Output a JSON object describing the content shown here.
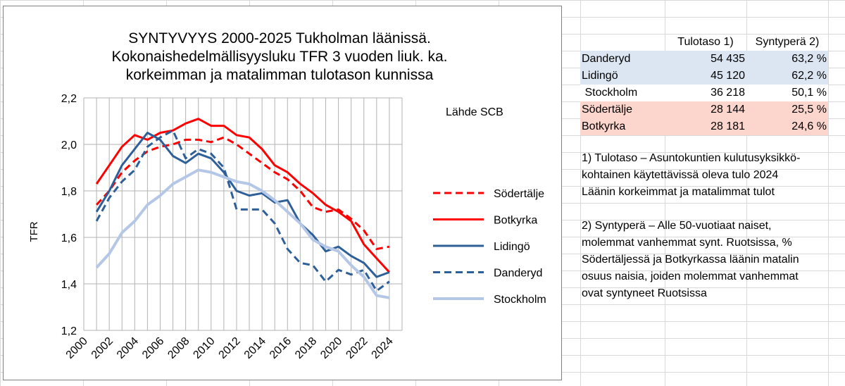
{
  "chart_data": {
    "type": "line",
    "title_lines": [
      "SYNTYVYYS 2000-2025 Tukholman läänissä.",
      "Kokonaishedelmällisyysluku TFR 3 vuoden liuk. ka.",
      "korkeimman ja matalimman tulotason kunnissa"
    ],
    "ylabel": "TFR",
    "xlabel": "",
    "source_note": "Lähde SCB",
    "ylim": [
      1.2,
      2.2
    ],
    "xlim": [
      2000,
      2025
    ],
    "y_ticks": [
      "1,2",
      "1,4",
      "1,6",
      "1,8",
      "2,0",
      "2,2"
    ],
    "y_tick_values": [
      1.2,
      1.4,
      1.6,
      1.8,
      2.0,
      2.2
    ],
    "x_ticks": [
      "2000",
      "2002",
      "2004",
      "2006",
      "2008",
      "2010",
      "2012",
      "2014",
      "2016",
      "2018",
      "2020",
      "2022",
      "2024"
    ],
    "x_tick_values": [
      2000,
      2002,
      2004,
      2006,
      2008,
      2010,
      2012,
      2014,
      2016,
      2018,
      2020,
      2022,
      2024
    ],
    "grid": "horizontal",
    "legend_position": "right",
    "x": [
      2001,
      2002,
      2003,
      2004,
      2005,
      2006,
      2007,
      2008,
      2009,
      2010,
      2011,
      2012,
      2013,
      2014,
      2015,
      2016,
      2017,
      2018,
      2019,
      2020,
      2021,
      2022,
      2023,
      2024
    ],
    "series": [
      {
        "name": "Södertälje",
        "color": "#ff0000",
        "style": "dashed",
        "width": 3,
        "values": [
          1.74,
          1.8,
          1.88,
          1.93,
          1.97,
          1.99,
          2.0,
          2.02,
          2.02,
          2.01,
          2.03,
          2.0,
          1.96,
          1.92,
          1.88,
          1.85,
          1.8,
          1.73,
          1.71,
          1.72,
          1.68,
          1.63,
          1.55,
          1.56
        ]
      },
      {
        "name": "Botkyrka",
        "color": "#ff0000",
        "style": "solid",
        "width": 3,
        "values": [
          1.83,
          1.91,
          1.99,
          2.04,
          2.02,
          2.05,
          2.06,
          2.09,
          2.11,
          2.08,
          2.08,
          2.04,
          2.03,
          1.98,
          1.91,
          1.88,
          1.83,
          1.79,
          1.74,
          1.71,
          1.67,
          1.57,
          1.51,
          1.45
        ]
      },
      {
        "name": "Lidingö",
        "color": "#2e5f99",
        "style": "solid",
        "width": 3,
        "values": [
          1.71,
          1.8,
          1.91,
          1.98,
          2.05,
          2.02,
          1.95,
          1.92,
          1.96,
          1.94,
          1.88,
          1.8,
          1.78,
          1.79,
          1.75,
          1.76,
          1.66,
          1.61,
          1.54,
          1.56,
          1.52,
          1.49,
          1.43,
          1.45
        ]
      },
      {
        "name": "Danderyd",
        "color": "#2e5f99",
        "style": "dashed",
        "width": 3,
        "values": [
          1.67,
          1.77,
          1.84,
          1.89,
          1.99,
          2.03,
          2.06,
          1.94,
          1.98,
          1.96,
          1.9,
          1.72,
          1.72,
          1.72,
          1.66,
          1.55,
          1.49,
          1.48,
          1.41,
          1.46,
          1.44,
          1.46,
          1.37,
          1.41
        ]
      },
      {
        "name": "Stockholm",
        "color": "#b4c7e7",
        "style": "solid",
        "width": 4,
        "values": [
          1.47,
          1.53,
          1.62,
          1.67,
          1.74,
          1.78,
          1.83,
          1.86,
          1.89,
          1.88,
          1.86,
          1.84,
          1.83,
          1.8,
          1.76,
          1.71,
          1.66,
          1.59,
          1.56,
          1.54,
          1.48,
          1.43,
          1.35,
          1.34
        ]
      }
    ]
  },
  "table": {
    "headers": [
      "Tulotaso 1)",
      "Syntyperä 2)"
    ],
    "rows": [
      {
        "name": "Danderyd",
        "tulotaso": "54 435",
        "syntypera": "63,2 %",
        "band": "#dce6f2"
      },
      {
        "name": "Lidingö",
        "tulotaso": "45 120",
        "syntypera": "62,2 %",
        "band": "#dce6f2"
      },
      {
        "name": " Stockholm",
        "tulotaso": "36 218",
        "syntypera": "50,1 %",
        "band": "#ffffff"
      },
      {
        "name": "Södertälje",
        "tulotaso": "28 144",
        "syntypera": "25,5 %",
        "band": "#fcd5cd"
      },
      {
        "name": "Botkyrka",
        "tulotaso": "28 181",
        "syntypera": "24,6 %",
        "band": "#fcd5cd"
      }
    ]
  },
  "notes": {
    "note1": [
      "1) Tulotaso – Asuntokuntien kulutusyksikkö-",
      "kohtainen käytettävissä oleva tulo 2024",
      "Läänin korkeimmat ja matalimmat tulot"
    ],
    "note2": [
      "2) Syntyperä – Alle 50-vuotiaat naiset,",
      "molemmat vanhemmat synt. Ruotsissa, %",
      "Södertäljessä ja Botkyrkassa läänin matalin",
      "osuus naisia, joiden molemmat vanhemmat",
      "ovat syntyneet Ruotsissa"
    ]
  }
}
